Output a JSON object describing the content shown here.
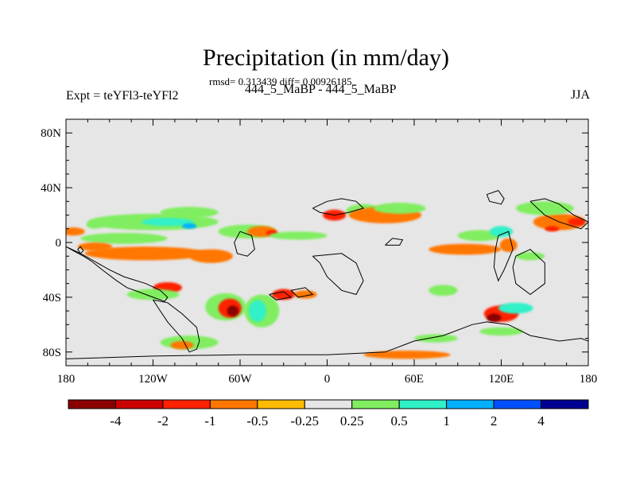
{
  "chart_data": {
    "type": "contour-map",
    "title": "Precipitation (in mm/day)",
    "subtitle_stats": "rmsd= 0.313439 diff= 0.00926185",
    "subtitle_case": "444_5_MaBP - 444_5_MaBP",
    "left_label": "Expt = teYFl3-teYFl2",
    "right_label": "JJA",
    "lon_range": [
      -180,
      180
    ],
    "lat_range": [
      -90,
      90
    ],
    "x_ticks": [
      {
        "value": -180,
        "label": "180"
      },
      {
        "value": -120,
        "label": "120W"
      },
      {
        "value": -60,
        "label": "60W"
      },
      {
        "value": 0,
        "label": "0"
      },
      {
        "value": 60,
        "label": "60E"
      },
      {
        "value": 120,
        "label": "120E"
      },
      {
        "value": 180,
        "label": "180"
      }
    ],
    "y_ticks": [
      {
        "value": 80,
        "label": "80N"
      },
      {
        "value": 40,
        "label": "40N"
      },
      {
        "value": 0,
        "label": "0"
      },
      {
        "value": -40,
        "label": "40S"
      },
      {
        "value": -80,
        "label": "80S"
      }
    ],
    "minor_x": [
      -165,
      -150,
      -135,
      -105,
      -90,
      -75,
      -45,
      -30,
      -15,
      15,
      30,
      45,
      75,
      90,
      105,
      135,
      150,
      165
    ],
    "minor_y": [
      70,
      60,
      50,
      30,
      20,
      10,
      -10,
      -20,
      -30,
      -50,
      -60,
      -70
    ],
    "colorbar": {
      "colors": [
        "#8b0000",
        "#cd0000",
        "#ff2200",
        "#ff7700",
        "#ffbb00",
        "#e6e6e6",
        "#80ee60",
        "#30f0c8",
        "#00b0ff",
        "#0050ff",
        "#000090"
      ],
      "labels": [
        "-4",
        "-2",
        "-1",
        "-0.5",
        "-0.25",
        "0.25",
        "0.5",
        "1",
        "2",
        "4"
      ]
    },
    "anomaly_regions": [
      {
        "lon": -160,
        "lat": 13,
        "rx": 6,
        "ry": 3,
        "level": 0.5
      },
      {
        "lon": -175,
        "lat": 8,
        "rx": 8,
        "ry": 3,
        "level": -0.5
      },
      {
        "lon": -120,
        "lat": 15,
        "rx": 45,
        "ry": 6,
        "level": 0.5
      },
      {
        "lon": -110,
        "lat": 15,
        "rx": 18,
        "ry": 3,
        "level": 1
      },
      {
        "lon": -95,
        "lat": 12,
        "rx": 5,
        "ry": 2,
        "level": 2
      },
      {
        "lon": -95,
        "lat": 22,
        "rx": 20,
        "ry": 4,
        "level": 0.5
      },
      {
        "lon": -140,
        "lat": 3,
        "rx": 30,
        "ry": 4,
        "level": 0.5
      },
      {
        "lon": -125,
        "lat": -8,
        "rx": 42,
        "ry": 5,
        "level": -0.5
      },
      {
        "lon": -80,
        "lat": -10,
        "rx": 15,
        "ry": 5,
        "level": -0.5
      },
      {
        "lon": -160,
        "lat": -3,
        "rx": 12,
        "ry": 3,
        "level": -0.5
      },
      {
        "lon": -55,
        "lat": 8,
        "rx": 20,
        "ry": 5,
        "level": 0.5
      },
      {
        "lon": -45,
        "lat": 8,
        "rx": 10,
        "ry": 4,
        "level": -0.5
      },
      {
        "lon": -38,
        "lat": 7,
        "rx": 4,
        "ry": 2,
        "level": -1
      },
      {
        "lon": -20,
        "lat": 5,
        "rx": 20,
        "ry": 3,
        "level": 0.5
      },
      {
        "lon": 5,
        "lat": 20,
        "rx": 8,
        "ry": 4,
        "level": -1
      },
      {
        "lon": 25,
        "lat": 23,
        "rx": 12,
        "ry": 5,
        "level": 0.5
      },
      {
        "lon": 40,
        "lat": 20,
        "rx": 25,
        "ry": 6,
        "level": -0.5
      },
      {
        "lon": 50,
        "lat": 25,
        "rx": 18,
        "ry": 4,
        "level": 0.5
      },
      {
        "lon": -110,
        "lat": -33,
        "rx": 10,
        "ry": 4,
        "level": -1
      },
      {
        "lon": -120,
        "lat": -38,
        "rx": 18,
        "ry": 4,
        "level": 0.5
      },
      {
        "lon": -70,
        "lat": -47,
        "rx": 14,
        "ry": 10,
        "level": 0.5
      },
      {
        "lon": -67,
        "lat": -48,
        "rx": 8,
        "ry": 7,
        "level": -1
      },
      {
        "lon": -65,
        "lat": -50,
        "rx": 4,
        "ry": 4,
        "level": -4
      },
      {
        "lon": -45,
        "lat": -50,
        "rx": 12,
        "ry": 12,
        "level": 0.5
      },
      {
        "lon": -48,
        "lat": -50,
        "rx": 6,
        "ry": 8,
        "level": 1
      },
      {
        "lon": -30,
        "lat": -38,
        "rx": 8,
        "ry": 4,
        "level": -1
      },
      {
        "lon": -15,
        "lat": -38,
        "rx": 8,
        "ry": 3,
        "level": -0.5
      },
      {
        "lon": -95,
        "lat": -73,
        "rx": 20,
        "ry": 5,
        "level": 0.5
      },
      {
        "lon": -100,
        "lat": -75,
        "rx": 8,
        "ry": 3,
        "level": -0.5
      },
      {
        "lon": 55,
        "lat": -82,
        "rx": 30,
        "ry": 3,
        "level": -0.5
      },
      {
        "lon": 75,
        "lat": -70,
        "rx": 15,
        "ry": 3,
        "level": 0.5
      },
      {
        "lon": 80,
        "lat": -35,
        "rx": 10,
        "ry": 4,
        "level": 0.5
      },
      {
        "lon": 95,
        "lat": -5,
        "rx": 25,
        "ry": 4,
        "level": -0.5
      },
      {
        "lon": 105,
        "lat": 5,
        "rx": 15,
        "ry": 4,
        "level": 0.5
      },
      {
        "lon": 120,
        "lat": 8,
        "rx": 8,
        "ry": 4,
        "level": 1
      },
      {
        "lon": 125,
        "lat": -2,
        "rx": 6,
        "ry": 5,
        "level": -0.5
      },
      {
        "lon": 140,
        "lat": -10,
        "rx": 10,
        "ry": 3,
        "level": 0.5
      },
      {
        "lon": 120,
        "lat": -52,
        "rx": 12,
        "ry": 6,
        "level": -1
      },
      {
        "lon": 115,
        "lat": -55,
        "rx": 5,
        "ry": 3,
        "level": -4
      },
      {
        "lon": 130,
        "lat": -48,
        "rx": 12,
        "ry": 4,
        "level": 1
      },
      {
        "lon": 120,
        "lat": -65,
        "rx": 15,
        "ry": 3,
        "level": 0.5
      },
      {
        "lon": 160,
        "lat": 15,
        "rx": 18,
        "ry": 6,
        "level": -0.5
      },
      {
        "lon": 155,
        "lat": 10,
        "rx": 5,
        "ry": 2,
        "level": -1
      },
      {
        "lon": 172,
        "lat": 15,
        "rx": 6,
        "ry": 3,
        "level": -1
      },
      {
        "lon": 150,
        "lat": 25,
        "rx": 20,
        "ry": 5,
        "level": 0.5
      }
    ],
    "coastlines": [
      [
        [
          -180,
          -3
        ],
        [
          -175,
          -6
        ],
        [
          -168,
          -10
        ],
        [
          -162,
          -14
        ],
        [
          -155,
          -20
        ],
        [
          -145,
          -28
        ],
        [
          -138,
          -33
        ],
        [
          -130,
          -36
        ],
        [
          -120,
          -40
        ],
        [
          -112,
          -43
        ],
        [
          -110,
          -40
        ],
        [
          -115,
          -35
        ],
        [
          -125,
          -30
        ],
        [
          -140,
          -25
        ],
        [
          -150,
          -20
        ],
        [
          -160,
          -14
        ],
        [
          -170,
          -8
        ],
        [
          -180,
          -3
        ]
      ],
      [
        [
          -120,
          -42
        ],
        [
          -115,
          -50
        ],
        [
          -110,
          -58
        ],
        [
          -100,
          -70
        ],
        [
          -95,
          -80
        ],
        [
          -90,
          -78
        ],
        [
          -88,
          -72
        ],
        [
          -90,
          -62
        ],
        [
          -100,
          -52
        ],
        [
          -110,
          -44
        ],
        [
          -120,
          -42
        ]
      ],
      [
        [
          -60,
          8
        ],
        [
          -52,
          5
        ],
        [
          -50,
          -5
        ],
        [
          -55,
          -10
        ],
        [
          -62,
          -8
        ],
        [
          -64,
          0
        ],
        [
          -60,
          8
        ]
      ],
      [
        [
          -40,
          -38
        ],
        [
          -30,
          -36
        ],
        [
          -25,
          -40
        ],
        [
          -35,
          -42
        ],
        [
          -40,
          -38
        ]
      ],
      [
        [
          -25,
          -35
        ],
        [
          -15,
          -33
        ],
        [
          -10,
          -38
        ],
        [
          -20,
          -40
        ],
        [
          -25,
          -35
        ]
      ],
      [
        [
          -10,
          -10
        ],
        [
          10,
          -8
        ],
        [
          20,
          -15
        ],
        [
          25,
          -28
        ],
        [
          20,
          -38
        ],
        [
          10,
          -35
        ],
        [
          0,
          -25
        ],
        [
          -5,
          -15
        ],
        [
          -10,
          -10
        ]
      ],
      [
        [
          -10,
          25
        ],
        [
          0,
          30
        ],
        [
          10,
          32
        ],
        [
          20,
          30
        ],
        [
          25,
          25
        ],
        [
          15,
          22
        ],
        [
          5,
          20
        ],
        [
          -5,
          22
        ],
        [
          -10,
          25
        ]
      ],
      [
        [
          40,
          -2
        ],
        [
          50,
          -2
        ],
        [
          52,
          2
        ],
        [
          45,
          3
        ],
        [
          40,
          -2
        ]
      ],
      [
        [
          -180,
          -85
        ],
        [
          -120,
          -83
        ],
        [
          -60,
          -82
        ],
        [
          0,
          -82
        ],
        [
          40,
          -80
        ],
        [
          60,
          -72
        ],
        [
          80,
          -68
        ],
        [
          100,
          -60
        ],
        [
          110,
          -58
        ],
        [
          125,
          -60
        ],
        [
          140,
          -68
        ],
        [
          160,
          -72
        ],
        [
          175,
          -70
        ],
        [
          180,
          -72
        ]
      ],
      [
        [
          110,
          35
        ],
        [
          118,
          38
        ],
        [
          122,
          32
        ],
        [
          120,
          28
        ],
        [
          112,
          30
        ],
        [
          110,
          35
        ]
      ],
      [
        [
          118,
          5
        ],
        [
          125,
          8
        ],
        [
          128,
          -5
        ],
        [
          122,
          -20
        ],
        [
          118,
          -28
        ],
        [
          115,
          -18
        ],
        [
          116,
          -5
        ],
        [
          118,
          5
        ]
      ],
      [
        [
          130,
          -10
        ],
        [
          140,
          -5
        ],
        [
          150,
          -15
        ],
        [
          150,
          -30
        ],
        [
          140,
          -38
        ],
        [
          130,
          -30
        ],
        [
          128,
          -18
        ],
        [
          130,
          -10
        ]
      ],
      [
        [
          140,
          30
        ],
        [
          150,
          32
        ],
        [
          160,
          28
        ],
        [
          170,
          20
        ],
        [
          180,
          15
        ],
        [
          175,
          10
        ],
        [
          160,
          15
        ],
        [
          150,
          20
        ],
        [
          140,
          30
        ]
      ],
      [
        [
          -172,
          -5
        ],
        [
          -170,
          -8
        ],
        [
          -168,
          -6
        ],
        [
          -170,
          -3
        ],
        [
          -172,
          -5
        ]
      ]
    ]
  }
}
